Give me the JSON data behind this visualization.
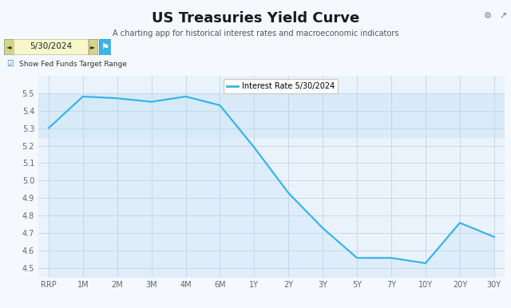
{
  "title": "US Treasuries Yield Curve",
  "subtitle": "A charting app for historical interest rates and macroeconomic indicators",
  "date_label": "5/30/2024",
  "legend_label": "Interest Rate 5/30/2024",
  "x_labels": [
    "RRP",
    "1M",
    "2M",
    "3M",
    "4M",
    "6M",
    "1Y",
    "2Y",
    "3Y",
    "5Y",
    "7Y",
    "10Y",
    "20Y",
    "30Y"
  ],
  "y_values": [
    5.3,
    5.48,
    5.47,
    5.45,
    5.48,
    5.43,
    5.19,
    4.93,
    4.73,
    4.56,
    4.56,
    4.53,
    4.76,
    4.68
  ],
  "line_color": "#3ab5e6",
  "fill_color": "#d6eaf8",
  "background_color": "#f5f8fc",
  "plot_bg_color": "#eaf3fb",
  "grid_color": "#c5d8e8",
  "ylim": [
    4.45,
    5.6
  ],
  "yticks": [
    4.5,
    4.6,
    4.7,
    4.8,
    4.9,
    5.0,
    5.1,
    5.2,
    5.3,
    5.4,
    5.5
  ],
  "fed_funds_low": 5.25,
  "fed_funds_high": 5.5,
  "fed_band_color": "#d6eaf8",
  "title_fontsize": 13,
  "subtitle_fontsize": 7,
  "axis_fontsize": 7,
  "legend_fontsize": 7,
  "date_box_color": "#f7f7cc",
  "nav_arrow_color": "#d4d48a",
  "cyan_button_color": "#3ab5e6",
  "checkbox_color": "#3377cc",
  "checkbox_label": "Show Fed Funds Target Range",
  "settings_icon": "⚙",
  "share_icon": "↗"
}
